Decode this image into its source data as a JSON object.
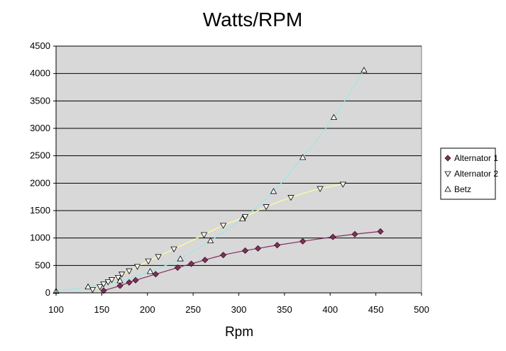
{
  "chart_data": {
    "type": "scatter",
    "title": "Watts/RPM",
    "xlabel": "Rpm",
    "ylabel": "",
    "xlim": [
      100,
      500
    ],
    "ylim": [
      0,
      4500
    ],
    "x_ticks": [
      "100",
      "150",
      "200",
      "250",
      "300",
      "350",
      "400",
      "450",
      "500"
    ],
    "y_ticks": [
      "0",
      "500",
      "1000",
      "1500",
      "2000",
      "2500",
      "3000",
      "3500",
      "4000",
      "4500"
    ],
    "grid": "horizontal",
    "legend_position": "right",
    "plot_background": "#d8d8d8",
    "series": [
      {
        "name": "Alternator 1",
        "marker": "diamond",
        "marker_color": "#80305a",
        "line_color": "#80305a",
        "points": [
          [
            152,
            40
          ],
          [
            170,
            130
          ],
          [
            180,
            190
          ],
          [
            187,
            230
          ],
          [
            209,
            340
          ],
          [
            233,
            460
          ],
          [
            248,
            530
          ],
          [
            263,
            600
          ],
          [
            283,
            690
          ],
          [
            307,
            770
          ],
          [
            321,
            810
          ],
          [
            342,
            870
          ],
          [
            370,
            940
          ],
          [
            403,
            1020
          ],
          [
            427,
            1070
          ],
          [
            455,
            1120
          ]
        ]
      },
      {
        "name": "Alternator 2",
        "marker": "triangle-down",
        "marker_color": "#ffffff",
        "line_color": "#ffff99",
        "points": [
          [
            140,
            60
          ],
          [
            148,
            110
          ],
          [
            152,
            160
          ],
          [
            157,
            200
          ],
          [
            161,
            240
          ],
          [
            168,
            280
          ],
          [
            172,
            340
          ],
          [
            180,
            400
          ],
          [
            189,
            480
          ],
          [
            201,
            580
          ],
          [
            212,
            660
          ],
          [
            229,
            800
          ],
          [
            262,
            1060
          ],
          [
            283,
            1230
          ],
          [
            307,
            1390
          ],
          [
            330,
            1570
          ],
          [
            357,
            1740
          ],
          [
            389,
            1900
          ],
          [
            414,
            1980
          ]
        ]
      },
      {
        "name": "Betz",
        "marker": "triangle-up",
        "marker_color": "#ffffff",
        "line_color": "#a0e6e6",
        "points": [
          [
            100,
            30
          ],
          [
            135,
            110
          ],
          [
            170,
            220
          ],
          [
            203,
            390
          ],
          [
            236,
            620
          ],
          [
            269,
            950
          ],
          [
            304,
            1350
          ],
          [
            338,
            1850
          ],
          [
            370,
            2470
          ],
          [
            404,
            3200
          ],
          [
            437,
            4060
          ]
        ]
      }
    ]
  }
}
